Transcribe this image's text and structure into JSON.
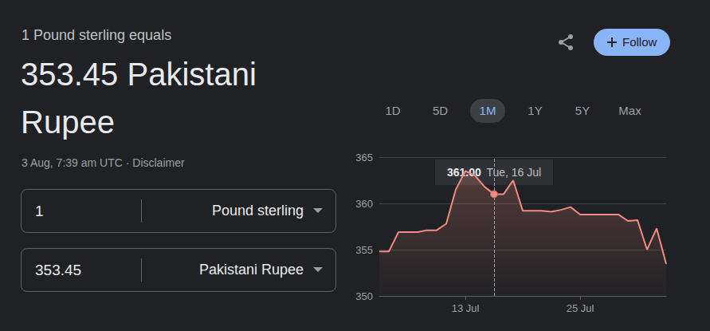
{
  "header": {
    "lead": "1 Pound sterling equals",
    "amount": "353.45 Pakistani Rupee",
    "meta": "3 Aug, 7:39 am UTC · Disclaimer"
  },
  "converter": [
    {
      "amount": "1",
      "currency": "Pound sterling"
    },
    {
      "amount": "353.45",
      "currency": "Pakistani Rupee"
    }
  ],
  "follow_button": "Follow",
  "ranges": [
    "1D",
    "5D",
    "1M",
    "1Y",
    "5Y",
    "Max"
  ],
  "selected_range": "1M",
  "chart_data": {
    "type": "line",
    "categories": [
      null,
      null,
      null,
      null,
      null,
      null,
      null,
      null,
      null,
      "13 Jul",
      null,
      null,
      null,
      null,
      null,
      null,
      null,
      null,
      null,
      null,
      null,
      "25 Jul",
      null,
      null,
      null,
      null,
      null,
      null,
      null,
      null,
      null
    ],
    "values": [
      354.8,
      354.8,
      356.9,
      356.9,
      356.9,
      357.1,
      357.1,
      357.8,
      361.5,
      363.5,
      363.0,
      361.8,
      361.0,
      361.0,
      362.5,
      359.2,
      359.2,
      359.2,
      359.1,
      359.3,
      359.6,
      358.8,
      358.8,
      358.8,
      358.8,
      358.8,
      358.1,
      358.2,
      355.0,
      357.3,
      353.45
    ],
    "color": "#f28b82",
    "ylim": [
      350,
      365
    ],
    "yticks": [
      350,
      355,
      360,
      365
    ],
    "grid": true,
    "annotations": [
      {
        "point": 12,
        "value_label": "361.00",
        "date": "Tue, 16 Jul"
      }
    ]
  }
}
